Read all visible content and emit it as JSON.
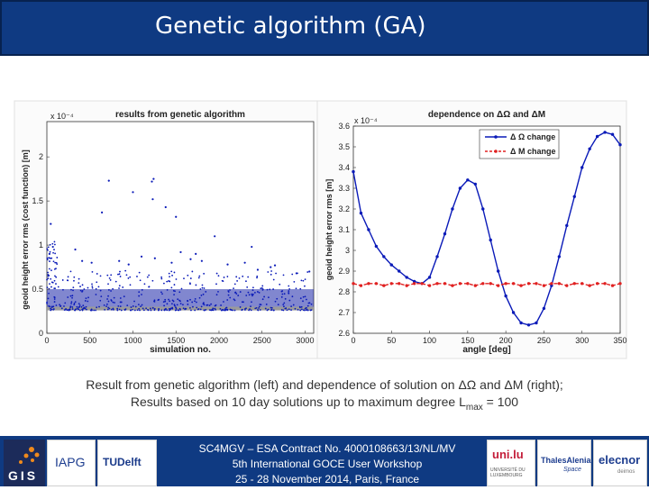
{
  "header": {
    "title": "Genetic algorithm (GA)"
  },
  "caption": {
    "line1": "Result from genetic algorithm (left) and dependence of solution on ΔΩ and ΔM (right);",
    "line2_pre": "Results based on 10 day solutions up to maximum degree L",
    "line2_sub": "max",
    "line2_post": " = 100"
  },
  "footer": {
    "line1": "SC4MGV – ESA Contract No. 4000108663/13/NL/MV",
    "line2": "5th International GOCE User Workshop",
    "line3": "25 - 28 November 2014, Paris, France",
    "logos": {
      "gis": "GIS",
      "iapg": "IAPG",
      "tudelft": "TUDelft",
      "uni": "uni.lu",
      "uni_sub": "UNIVERSITÉ DU LUXEMBOURG",
      "thales": "ThalesAlenia",
      "thales_sub": "Space",
      "elecnor": "elecnor",
      "elecnor_sub": "deimos"
    }
  },
  "chart_data": [
    {
      "type": "scatter",
      "title": "results from genetic algorithm",
      "xlabel": "simulation no.",
      "ylabel": "geoid height error rms (cost function) [m]",
      "exponent": "x 10⁻⁴",
      "xlim": [
        0,
        3100
      ],
      "ylim": [
        0,
        2.4
      ],
      "xticks": [
        0,
        500,
        1000,
        1500,
        2000,
        2500,
        3000
      ],
      "yticks": [
        0,
        0.5,
        1,
        1.5,
        2
      ],
      "ytick_labels": [
        "0",
        "0.5",
        "1",
        "1.5",
        "2"
      ],
      "color": "#0a1ab8",
      "points": [
        [
          720,
          1.73
        ],
        [
          1220,
          1.72
        ],
        [
          1240,
          1.75
        ],
        [
          1230,
          1.52
        ],
        [
          1000,
          1.6
        ],
        [
          1380,
          1.43
        ],
        [
          640,
          1.37
        ],
        [
          1500,
          1.32
        ],
        [
          45,
          1.24
        ],
        [
          1950,
          1.1
        ],
        [
          70,
          0.98
        ],
        [
          30,
          0.9
        ],
        [
          330,
          0.95
        ],
        [
          1555,
          0.92
        ],
        [
          1100,
          0.87
        ],
        [
          1670,
          0.84
        ],
        [
          840,
          0.82
        ],
        [
          1730,
          0.9
        ],
        [
          2380,
          0.98
        ],
        [
          2650,
          0.77
        ],
        [
          1255,
          0.85
        ],
        [
          1450,
          0.8
        ],
        [
          950,
          0.78
        ],
        [
          2300,
          0.8
        ],
        [
          2600,
          0.75
        ],
        [
          410,
          0.82
        ],
        [
          520,
          0.8
        ],
        [
          1800,
          0.82
        ],
        [
          2100,
          0.78
        ],
        [
          2450,
          0.72
        ],
        [
          2900,
          0.68
        ],
        [
          3050,
          0.7
        ]
      ],
      "band": {
        "x_from": 0,
        "x_to": 3100,
        "y_from": 0.26,
        "y_to": 0.5,
        "floor": 0.26
      }
    },
    {
      "type": "line",
      "title": "dependence on ΔΩ and ΔM",
      "xlabel": "angle [deg]",
      "ylabel": "geoid height error rms [m]",
      "exponent": "x 10⁻⁴",
      "xlim": [
        0,
        350
      ],
      "ylim": [
        2.6,
        3.6
      ],
      "xticks": [
        0,
        50,
        100,
        150,
        200,
        250,
        300,
        350
      ],
      "yticks": [
        2.6,
        2.7,
        2.8,
        2.9,
        3,
        3.1,
        3.2,
        3.3,
        3.4,
        3.5,
        3.6
      ],
      "ytick_labels": [
        "2.6",
        "2.7",
        "2.8",
        "2.9",
        "3",
        "3.1",
        "3.2",
        "3.3",
        "3.4",
        "3.5",
        "3.6"
      ],
      "legend_position": "top-right",
      "series": [
        {
          "name": "Δ Ω change",
          "color": "#0a1ab8",
          "dash": false,
          "x": [
            0,
            10,
            20,
            30,
            40,
            50,
            60,
            70,
            80,
            90,
            100,
            110,
            120,
            130,
            140,
            150,
            160,
            170,
            180,
            190,
            200,
            210,
            220,
            230,
            240,
            250,
            260,
            270,
            280,
            290,
            300,
            310,
            320,
            330,
            340,
            350
          ],
          "y": [
            3.38,
            3.18,
            3.1,
            3.02,
            2.97,
            2.93,
            2.9,
            2.87,
            2.85,
            2.84,
            2.87,
            2.97,
            3.08,
            3.2,
            3.3,
            3.34,
            3.32,
            3.2,
            3.05,
            2.9,
            2.78,
            2.7,
            2.65,
            2.64,
            2.65,
            2.72,
            2.83,
            2.97,
            3.12,
            3.26,
            3.4,
            3.49,
            3.55,
            3.57,
            3.56,
            3.51
          ]
        },
        {
          "name": "Δ M change",
          "color": "#e02020",
          "dash": true,
          "x": [
            0,
            10,
            20,
            30,
            40,
            50,
            60,
            70,
            80,
            90,
            100,
            110,
            120,
            130,
            140,
            150,
            160,
            170,
            180,
            190,
            200,
            210,
            220,
            230,
            240,
            250,
            260,
            270,
            280,
            290,
            300,
            310,
            320,
            330,
            340,
            350
          ],
          "y": [
            2.84,
            2.83,
            2.84,
            2.84,
            2.83,
            2.84,
            2.84,
            2.83,
            2.84,
            2.84,
            2.83,
            2.84,
            2.84,
            2.83,
            2.84,
            2.84,
            2.83,
            2.84,
            2.84,
            2.83,
            2.84,
            2.84,
            2.83,
            2.84,
            2.84,
            2.83,
            2.84,
            2.84,
            2.83,
            2.84,
            2.84,
            2.83,
            2.84,
            2.84,
            2.83,
            2.84
          ]
        }
      ]
    }
  ]
}
